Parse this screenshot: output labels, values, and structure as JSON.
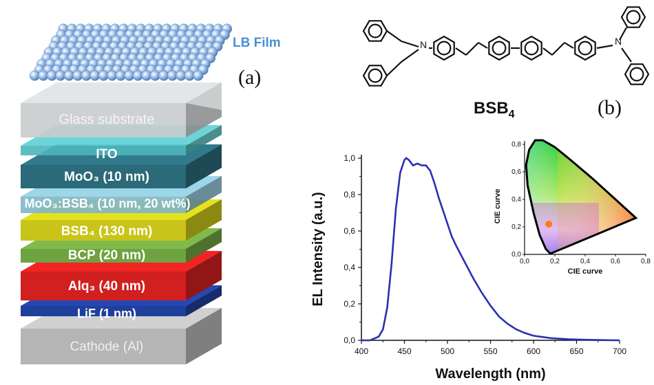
{
  "stack": {
    "lb_film": "LB Film",
    "panel": "(a)",
    "layers": {
      "glass": "Glass substrate",
      "ito": "ITO",
      "moo3": "MoO₃ (10 nm)",
      "moo3_bsb4": "MoO₃:BSB₄ (10 nm, 20 wt%)",
      "bsb4": "BSB₄ (130 nm)",
      "bcp": "BCP (20 nm)",
      "alq3": "Alq₃ (40 nm)",
      "lif": "LiF (1 nm)",
      "cathode": "Cathode (Al)"
    },
    "colors": {
      "glass": "#c9cccd",
      "ito": "#4fb5ba",
      "moo3": "#2a6a79",
      "moo3_bsb4": "#7fb7c9",
      "bsb4": "#c8c41a",
      "bcp": "#6fa241",
      "alq3": "#d21f1f",
      "lif": "#1f3f9c",
      "cathode": "#b5b5b5",
      "sphere": "#8fb6e2"
    }
  },
  "molecule": {
    "name": "BSB",
    "name_sub": "4",
    "n_label": "N",
    "panel": "(b)"
  },
  "chart_data": {
    "type": "line",
    "xlabel": "Wavelength (nm)",
    "ylabel": "EL Intensity (a.u.)",
    "xlim": [
      400,
      700
    ],
    "ylim": [
      0,
      1.0
    ],
    "x_ticks": [
      "400",
      "450",
      "500",
      "550",
      "600",
      "650",
      "700"
    ],
    "y_ticks": [
      "0,0",
      "0,2",
      "0,4",
      "0,6",
      "0,8",
      "1,0"
    ],
    "series": [
      {
        "color": "#2a2fb0",
        "x": [
          400,
          410,
          420,
          425,
          430,
          435,
          440,
          445,
          450,
          452,
          455,
          460,
          465,
          470,
          475,
          480,
          485,
          490,
          495,
          500,
          505,
          510,
          520,
          530,
          540,
          550,
          560,
          570,
          580,
          590,
          600,
          620,
          640,
          660,
          680,
          700
        ],
        "y": [
          0.0,
          0.0,
          0.02,
          0.06,
          0.18,
          0.42,
          0.72,
          0.92,
          0.99,
          1.0,
          0.99,
          0.96,
          0.97,
          0.96,
          0.96,
          0.93,
          0.86,
          0.78,
          0.71,
          0.64,
          0.57,
          0.52,
          0.43,
          0.34,
          0.26,
          0.19,
          0.13,
          0.09,
          0.06,
          0.04,
          0.025,
          0.012,
          0.006,
          0.003,
          0.001,
          0.0
        ]
      }
    ],
    "inset": {
      "xlabel": "CIE curve",
      "ylabel": "CIE curve",
      "x_ticks": [
        "0,0",
        "0,2",
        "0,4",
        "0,6",
        "0,8"
      ],
      "y_ticks": [
        "0,0",
        "0,2",
        "0,4",
        "0,6",
        "0,8"
      ],
      "point": {
        "x": 0.16,
        "y": 0.22,
        "color": "#ff7a1a"
      }
    }
  }
}
